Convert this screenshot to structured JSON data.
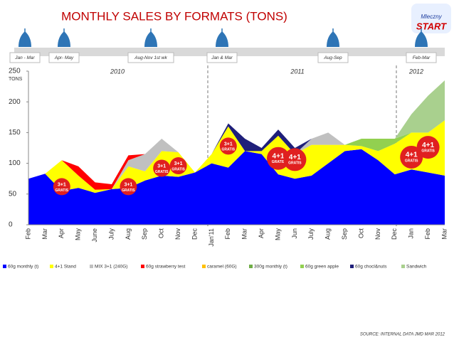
{
  "chart_data": {
    "type": "stacked-area",
    "title": "MONTHLY SALES BY FORMATS (TONS)",
    "y_label": "TONS",
    "logo": [
      "Mleczny",
      "START"
    ],
    "periods": [
      "Jan - Mar",
      "Apr- May",
      "Aug-Nov 1st wk",
      "Jan & Mar",
      "Aug-Sep",
      "Feb-Mar"
    ],
    "years": [
      "2010",
      "2011",
      "2012"
    ],
    "categories": [
      "Feb",
      "Mar",
      "Apr",
      "May",
      "June",
      "July",
      "Aug",
      "Sep",
      "Oct",
      "Nov",
      "Dec",
      "Jan'11",
      "Feb",
      "Mar",
      "Apr",
      "May",
      "Jun",
      "July",
      "Aug",
      "Sep",
      "Oct",
      "Nov",
      "Dec",
      "Jan",
      "Feb",
      "Mar"
    ],
    "ylim": [
      0,
      250
    ],
    "yticks": [
      0,
      50,
      100,
      150,
      200,
      250
    ],
    "grid": false,
    "series": [
      {
        "name": "60g monthly (t)",
        "color": "#0000ff",
        "values": [
          75,
          83,
          55,
          60,
          52,
          58,
          60,
          72,
          80,
          78,
          85,
          100,
          93,
          120,
          115,
          82,
          75,
          80,
          100,
          120,
          123,
          105,
          82,
          90,
          85,
          80
        ]
      },
      {
        "name": "4+1 Stand",
        "color": "#ffff00",
        "values": [
          0,
          0,
          50,
          20,
          5,
          0,
          35,
          15,
          40,
          40,
          0,
          15,
          67,
          0,
          5,
          63,
          40,
          50,
          30,
          10,
          5,
          15,
          50,
          60,
          65,
          90
        ]
      },
      {
        "name": "MIX 3+1 (240G)",
        "color": "#c0c0c0",
        "values": [
          0,
          0,
          0,
          0,
          0,
          0,
          10,
          28,
          20,
          0,
          0,
          0,
          0,
          0,
          0,
          0,
          0,
          10,
          20,
          0,
          0,
          0,
          0,
          0,
          0,
          0
        ]
      },
      {
        "name": "60g strawberry test",
        "color": "#ff0000",
        "values": [
          0,
          0,
          0,
          15,
          12,
          8,
          8,
          0,
          0,
          0,
          0,
          0,
          0,
          0,
          0,
          0,
          0,
          0,
          0,
          0,
          0,
          0,
          0,
          0,
          0,
          0
        ]
      },
      {
        "name": "caramel (60G)",
        "color": "#ffc000",
        "values": [
          0,
          0,
          0,
          0,
          0,
          0,
          0,
          0,
          0,
          0,
          0,
          0,
          0,
          0,
          0,
          0,
          0,
          0,
          0,
          0,
          0,
          0,
          0,
          0,
          0,
          0
        ]
      },
      {
        "name": "300g monthly (t)",
        "color": "#70ad47",
        "values": [
          0,
          0,
          0,
          0,
          0,
          0,
          0,
          0,
          0,
          0,
          0,
          0,
          0,
          0,
          0,
          0,
          0,
          0,
          0,
          0,
          0,
          0,
          0,
          0,
          0,
          0
        ]
      },
      {
        "name": "60g green apple",
        "color": "#92d050",
        "values": [
          0,
          0,
          0,
          0,
          0,
          0,
          0,
          0,
          0,
          0,
          0,
          0,
          0,
          0,
          0,
          0,
          0,
          0,
          0,
          0,
          12,
          20,
          8,
          0,
          0,
          0
        ]
      },
      {
        "name": "60g chocl&nuts",
        "color": "#1f1f7a",
        "values": [
          0,
          0,
          0,
          0,
          0,
          0,
          0,
          0,
          0,
          0,
          0,
          0,
          5,
          20,
          5,
          10,
          10,
          0,
          0,
          0,
          0,
          0,
          0,
          0,
          0,
          0
        ]
      },
      {
        "name": "Sandwich",
        "color": "#a9d08e",
        "values": [
          0,
          0,
          0,
          0,
          0,
          0,
          0,
          0,
          0,
          0,
          0,
          0,
          0,
          0,
          0,
          0,
          0,
          0,
          0,
          0,
          0,
          0,
          0,
          30,
          60,
          65
        ]
      }
    ],
    "annotations": [
      {
        "text": "3+1",
        "sub": "GRATIS"
      },
      {
        "text": "3+1",
        "sub": "GRATIS"
      },
      {
        "text": "3+1",
        "sub": "GRATIS"
      },
      {
        "text": "3+1",
        "sub": "GRATIS"
      },
      {
        "text": "3+1",
        "sub": "GRATIS"
      },
      {
        "text": "4+1",
        "sub": "GRATIS"
      },
      {
        "text": "4+1",
        "sub": "GRATIS"
      },
      {
        "text": "4+1",
        "sub": "GRATIS"
      },
      {
        "text": "4+1",
        "sub": "GRATIS"
      }
    ],
    "source": "SOURCE:  INTERNAL DATA JMD MAR 2012"
  }
}
